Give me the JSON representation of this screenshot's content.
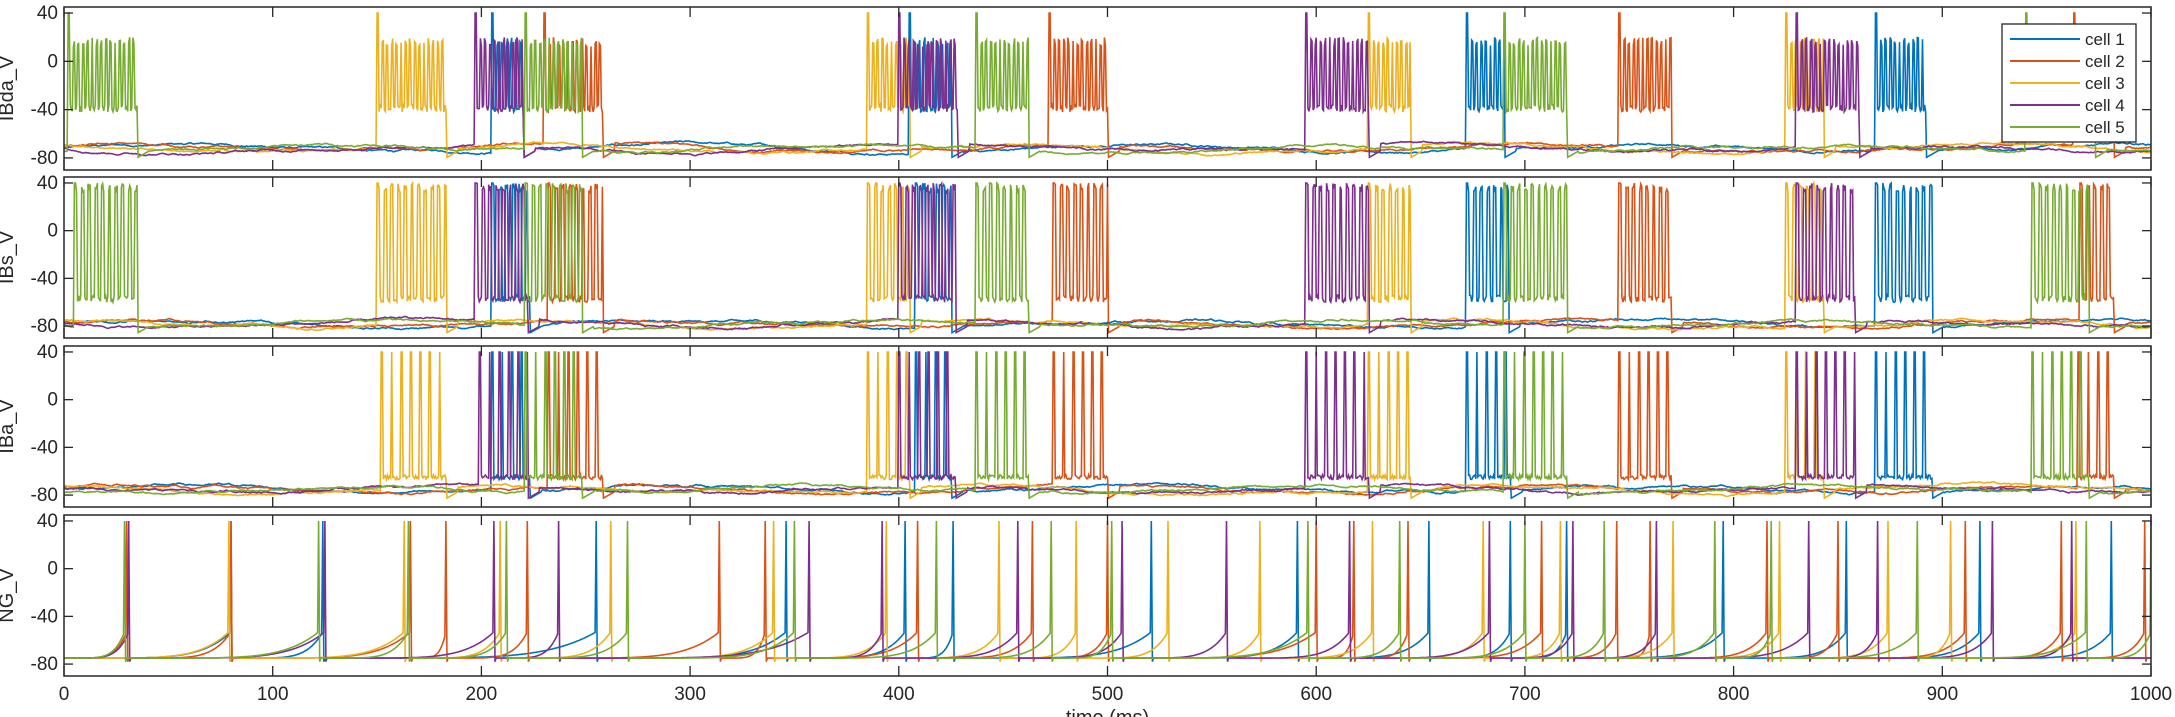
{
  "chart_data": {
    "type": "line",
    "xlabel": "time (ms)",
    "xlim": [
      0,
      1000
    ],
    "xticks": [
      0,
      100,
      200,
      300,
      400,
      500,
      600,
      700,
      800,
      900,
      1000
    ],
    "yticks": [
      -80,
      -40,
      0,
      40
    ],
    "ylim": [
      -90,
      45
    ],
    "legend": {
      "placement": "top-right of first panel",
      "entries": [
        "cell 1",
        "cell 2",
        "cell 3",
        "cell 4",
        "cell 5"
      ]
    },
    "colors": {
      "cell 1": "#0072BD",
      "cell 2": "#D95319",
      "cell 3": "#EDB120",
      "cell 4": "#7E2F8E",
      "cell 5": "#77AC30"
    },
    "panels": [
      {
        "ylabel": "IBda_V",
        "bursts": {
          "cell 1": [
            [
              205,
              220
            ],
            [
              405,
              425
            ],
            [
              672,
              690
            ],
            [
              868,
              892
            ]
          ],
          "cell 2": [
            [
              230,
              258
            ],
            [
              472,
              500
            ],
            [
              745,
              770
            ],
            [
              963,
              982
            ]
          ],
          "cell 3": [
            [
              150,
              183
            ],
            [
              385,
              405
            ],
            [
              625,
              645
            ],
            [
              825,
              843
            ]
          ],
          "cell 4": [
            [
              197,
              220
            ],
            [
              400,
              428
            ],
            [
              595,
              625
            ],
            [
              830,
              860
            ]
          ],
          "cell 5": [
            [
              2,
              35
            ],
            [
              221,
              248
            ],
            [
              437,
              462
            ],
            [
              690,
              720
            ],
            [
              940,
              973
            ]
          ]
        },
        "burst_peak": 20,
        "burst_trough": -42,
        "rest": -72
      },
      {
        "ylabel": "IBs_V",
        "bursts": {
          "cell 1": [
            [
              205,
              223
            ],
            [
              408,
              425
            ],
            [
              672,
              692
            ],
            [
              868,
              895
            ]
          ],
          "cell 2": [
            [
              232,
              258
            ],
            [
              474,
              500
            ],
            [
              745,
              770
            ],
            [
              966,
              982
            ]
          ],
          "cell 3": [
            [
              150,
              183
            ],
            [
              385,
              405
            ],
            [
              625,
              645
            ],
            [
              825,
              843
            ]
          ],
          "cell 4": [
            [
              197,
              222
            ],
            [
              400,
              427
            ],
            [
              595,
              625
            ],
            [
              830,
              858
            ]
          ],
          "cell 5": [
            [
              5,
              35
            ],
            [
              221,
              248
            ],
            [
              437,
              462
            ],
            [
              690,
              720
            ],
            [
              943,
              970
            ]
          ]
        },
        "burst_peak": 40,
        "burst_trough": -60,
        "rest": -78
      },
      {
        "ylabel": "IBa_V",
        "bursts": {
          "cell 1": [
            [
              205,
              223
            ],
            [
              408,
              425
            ],
            [
              672,
              693
            ],
            [
              868,
              895
            ]
          ],
          "cell 2": [
            [
              232,
              258
            ],
            [
              474,
              500
            ],
            [
              745,
              770
            ],
            [
              965,
              982
            ]
          ],
          "cell 3": [
            [
              152,
              183
            ],
            [
              385,
              405
            ],
            [
              625,
              645
            ],
            [
              825,
              843
            ]
          ],
          "cell 4": [
            [
              199,
              222
            ],
            [
              400,
              427
            ],
            [
              595,
              625
            ],
            [
              830,
              858
            ]
          ],
          "cell 5": [
            [
              221,
              248
            ],
            [
              437,
              462
            ],
            [
              690,
              720
            ],
            [
              943,
              970
            ]
          ]
        },
        "burst_peak": 40,
        "burst_trough": -65,
        "rest": -75
      },
      {
        "ylabel": "NG_V",
        "spikes": {
          "cell 1": [
            80,
            124,
            255,
            346,
            403,
            426,
            521,
            591,
            654,
            693,
            720,
            795,
            854,
            918,
            981
          ],
          "cell 2": [
            30,
            80,
            166,
            183,
            222,
            314,
            336,
            409,
            464,
            500,
            600,
            618,
            644,
            708,
            744,
            760,
            816,
            850,
            911,
            957,
            997
          ],
          "cell 3": [
            79,
            163,
            209,
            262,
            340,
            394,
            448,
            485,
            529,
            573,
            627,
            680,
            717,
            771,
            822,
            874,
            904,
            964
          ],
          "cell 4": [
            31,
            125,
            206,
            237,
            357,
            392,
            457,
            507,
            557,
            616,
            683,
            723,
            763,
            836,
            869,
            924,
            962
          ],
          "cell 5": [
            29,
            122,
            165,
            212,
            270,
            350,
            418,
            473,
            502,
            596,
            640,
            700,
            738,
            791,
            818,
            888,
            969,
            1000
          ]
        },
        "spike_peak": 40,
        "rest": -75
      }
    ]
  }
}
